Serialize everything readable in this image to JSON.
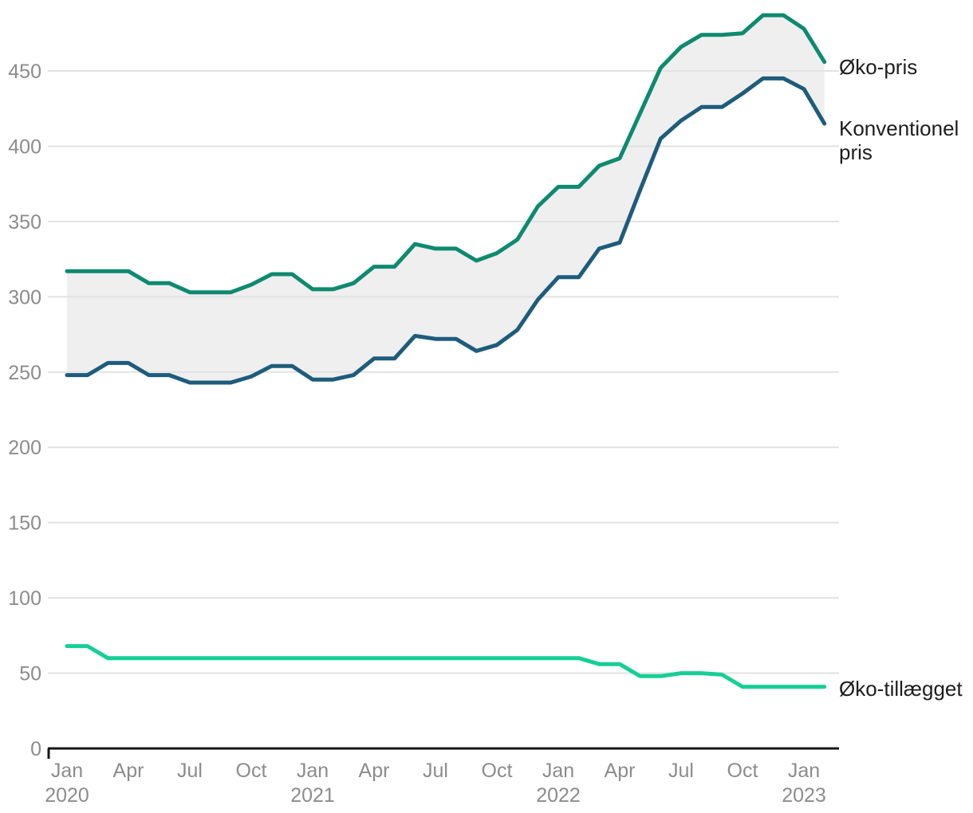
{
  "chart_data": {
    "type": "line",
    "title": "",
    "categories": [
      "Jan 2020",
      "Feb 2020",
      "Mar 2020",
      "Apr 2020",
      "May 2020",
      "Jun 2020",
      "Jul 2020",
      "Aug 2020",
      "Sep 2020",
      "Oct 2020",
      "Nov 2020",
      "Dec 2020",
      "Jan 2021",
      "Feb 2021",
      "Mar 2021",
      "Apr 2021",
      "May 2021",
      "Jun 2021",
      "Jul 2021",
      "Aug 2021",
      "Sep 2021",
      "Oct 2021",
      "Nov 2021",
      "Dec 2021",
      "Jan 2022",
      "Feb 2022",
      "Mar 2022",
      "Apr 2022",
      "May 2022",
      "Jun 2022",
      "Jul 2022",
      "Aug 2022",
      "Sep 2022",
      "Oct 2022",
      "Nov 2022",
      "Dec 2022",
      "Jan 2023",
      "Feb 2023"
    ],
    "series": [
      {
        "name": "Øko-pris",
        "color": "#0e8a70",
        "values": [
          317,
          317,
          317,
          317,
          309,
          309,
          303,
          303,
          303,
          308,
          315,
          315,
          305,
          305,
          309,
          320,
          320,
          335,
          332,
          332,
          324,
          329,
          338,
          360,
          373,
          373,
          387,
          392,
          422,
          452,
          466,
          474,
          474,
          475,
          487,
          487,
          478,
          456
        ]
      },
      {
        "name": "Konventionel pris",
        "color": "#1e5c7c",
        "values": [
          248,
          248,
          256,
          256,
          248,
          248,
          243,
          243,
          243,
          247,
          254,
          254,
          245,
          245,
          248,
          259,
          259,
          274,
          272,
          272,
          264,
          268,
          278,
          298,
          313,
          313,
          332,
          336,
          371,
          405,
          417,
          426,
          426,
          435,
          445,
          445,
          438,
          415
        ]
      },
      {
        "name": "Øko-tillægget",
        "color": "#15cf96",
        "values": [
          68,
          68,
          60,
          60,
          60,
          60,
          60,
          60,
          60,
          60,
          60,
          60,
          60,
          60,
          60,
          60,
          60,
          60,
          60,
          60,
          60,
          60,
          60,
          60,
          60,
          60,
          56,
          56,
          48,
          48,
          50,
          50,
          49,
          41,
          41,
          41,
          41,
          41
        ]
      }
    ],
    "band_fill_between": [
      "Øko-pris",
      "Konventionel pris"
    ],
    "band_fill_color": "#efefef",
    "y_ticks": [
      0,
      50,
      100,
      150,
      200,
      250,
      300,
      350,
      400,
      450
    ],
    "ylim": [
      0,
      487
    ],
    "grid": "horizontal",
    "gridline_color": "#e2e2e2",
    "axis_line_color": "#161616",
    "tick_label_color": "#8c8c8c",
    "legend_position": "right",
    "x_tick_labels": [
      {
        "i": 0,
        "m": "Jan",
        "y": "2020"
      },
      {
        "i": 3,
        "m": "Apr"
      },
      {
        "i": 6,
        "m": "Jul"
      },
      {
        "i": 9,
        "m": "Oct"
      },
      {
        "i": 12,
        "m": "Jan",
        "y": "2021"
      },
      {
        "i": 15,
        "m": "Apr"
      },
      {
        "i": 18,
        "m": "Jul"
      },
      {
        "i": 21,
        "m": "Oct"
      },
      {
        "i": 24,
        "m": "Jan",
        "y": "2022"
      },
      {
        "i": 27,
        "m": "Apr"
      },
      {
        "i": 30,
        "m": "Jul"
      },
      {
        "i": 33,
        "m": "Oct"
      },
      {
        "i": 36,
        "m": "Jan",
        "y": "2023"
      }
    ]
  }
}
